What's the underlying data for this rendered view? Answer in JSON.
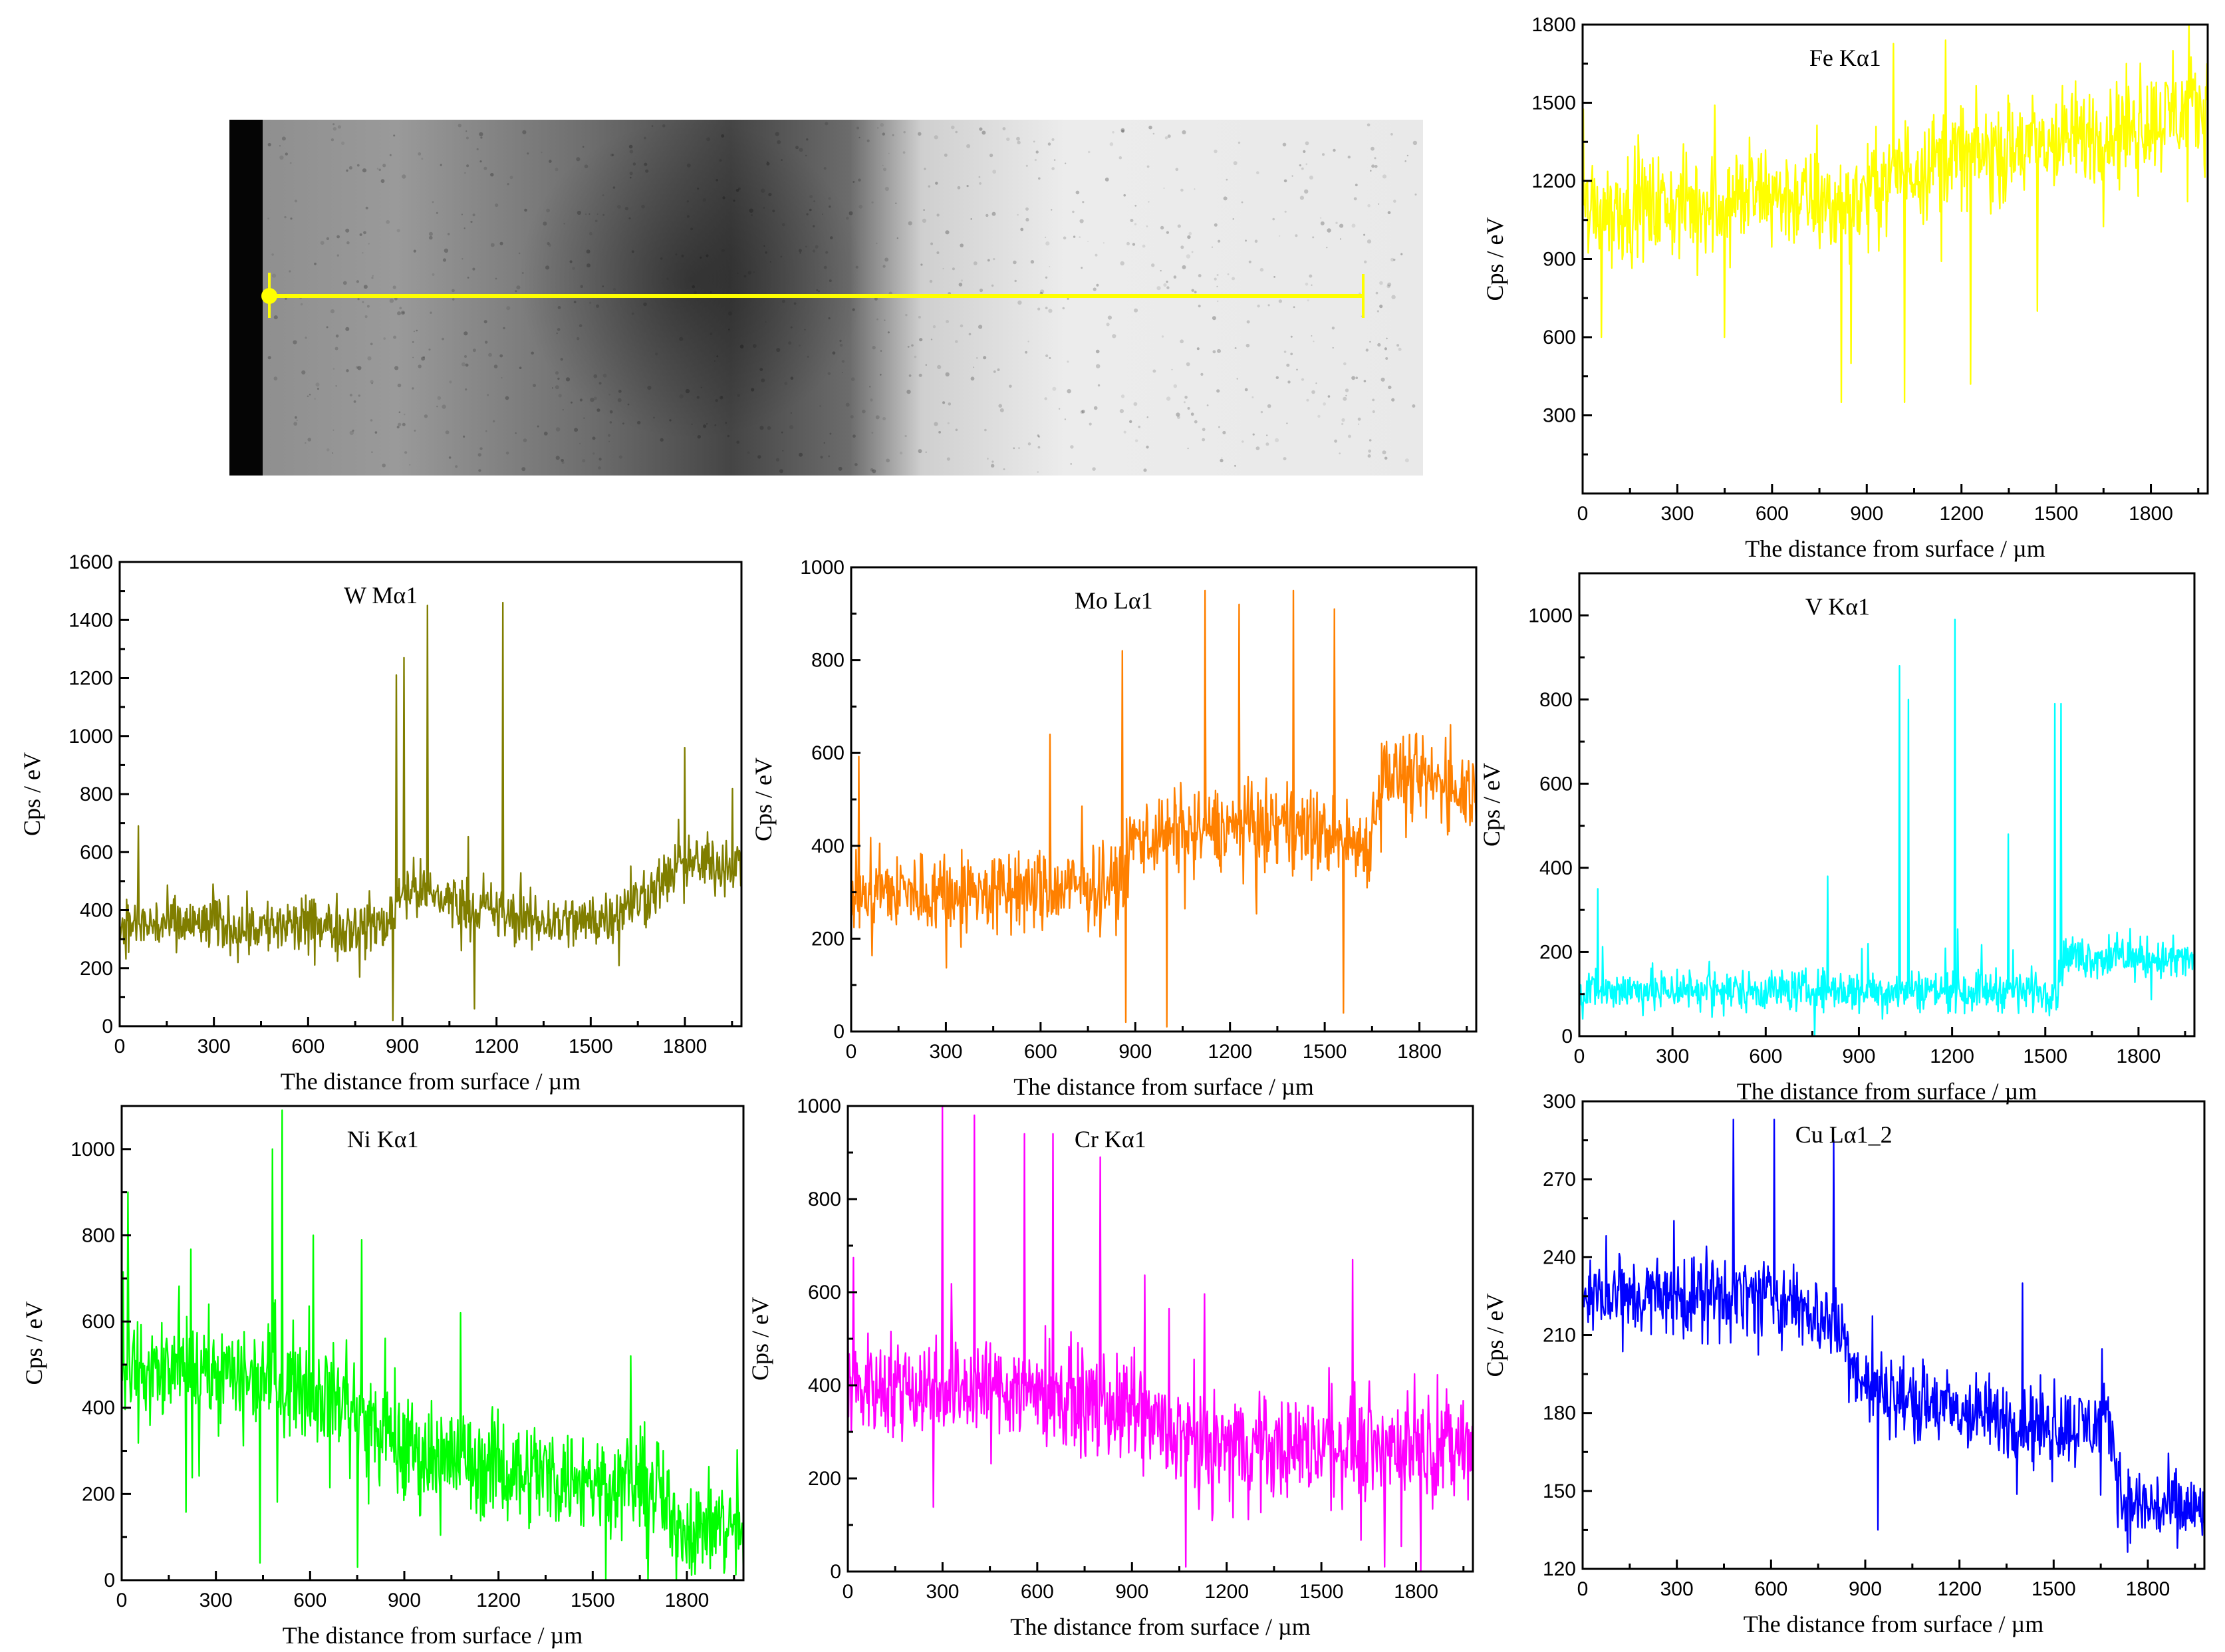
{
  "micrograph": {
    "line_color": "#ffff00"
  },
  "chart_data": [
    {
      "type": "line",
      "title": "Fe Kα1",
      "xlabel": "The distance from surface / µm",
      "ylabel": "Cps / eV",
      "color": "#ffff00",
      "xlim": [
        0,
        1980
      ],
      "ylim": [
        0,
        1800
      ],
      "xticks": [
        0,
        300,
        600,
        900,
        1200,
        1500,
        1800
      ],
      "yticks": [
        300,
        600,
        900,
        1200,
        1500,
        1800
      ],
      "profile": [
        [
          0,
          1100
        ],
        [
          300,
          1100
        ],
        [
          600,
          1150
        ],
        [
          800,
          1100
        ],
        [
          900,
          1150
        ],
        [
          1000,
          1250
        ],
        [
          1200,
          1300
        ],
        [
          1300,
          1300
        ],
        [
          1500,
          1350
        ],
        [
          1700,
          1400
        ],
        [
          1980,
          1480
        ]
      ],
      "noise": 180,
      "peaks": [
        [
          60,
          600
        ],
        [
          450,
          600
        ],
        [
          820,
          350
        ],
        [
          850,
          500
        ],
        [
          1020,
          350
        ],
        [
          1230,
          420
        ],
        [
          1440,
          700
        ],
        [
          1150,
          1740
        ],
        [
          1870,
          1700
        ]
      ]
    },
    {
      "type": "line",
      "title": "W Mα1",
      "xlabel": "The distance from surface / µm",
      "ylabel": "Cps / eV",
      "color": "#807e00",
      "xlim": [
        0,
        1980
      ],
      "ylim": [
        0,
        1600
      ],
      "xticks": [
        0,
        300,
        600,
        900,
        1200,
        1500,
        1800
      ],
      "yticks": [
        0,
        200,
        400,
        600,
        800,
        1000,
        1200,
        1400,
        1600
      ],
      "profile": [
        [
          0,
          350
        ],
        [
          300,
          350
        ],
        [
          600,
          340
        ],
        [
          850,
          350
        ],
        [
          900,
          480
        ],
        [
          1100,
          420
        ],
        [
          1300,
          360
        ],
        [
          1500,
          360
        ],
        [
          1650,
          430
        ],
        [
          1800,
          560
        ],
        [
          1980,
          560
        ]
      ],
      "noise": 90,
      "peaks": [
        [
          60,
          690
        ],
        [
          880,
          1210
        ],
        [
          905,
          1270
        ],
        [
          980,
          1450
        ],
        [
          1220,
          1460
        ],
        [
          870,
          20
        ],
        [
          1130,
          60
        ],
        [
          1800,
          960
        ]
      ]
    },
    {
      "type": "line",
      "title": "Mo Lα1",
      "xlabel": "The distance from surface / µm",
      "ylabel": "Cps / eV",
      "color": "#ff8000",
      "xlim": [
        0,
        1980
      ],
      "ylim": [
        0,
        1000
      ],
      "xticks": [
        0,
        300,
        600,
        900,
        1200,
        1500,
        1800
      ],
      "yticks": [
        0,
        200,
        400,
        600,
        800,
        1000
      ],
      "profile": [
        [
          0,
          300
        ],
        [
          300,
          300
        ],
        [
          600,
          300
        ],
        [
          850,
          320
        ],
        [
          900,
          420
        ],
        [
          1200,
          440
        ],
        [
          1400,
          440
        ],
        [
          1640,
          400
        ],
        [
          1680,
          560
        ],
        [
          1980,
          520
        ]
      ],
      "noise": 80,
      "peaks": [
        [
          630,
          640
        ],
        [
          860,
          820
        ],
        [
          1120,
          950
        ],
        [
          1230,
          920
        ],
        [
          1400,
          950
        ],
        [
          1530,
          910
        ],
        [
          870,
          20
        ],
        [
          1000,
          10
        ],
        [
          1560,
          40
        ]
      ]
    },
    {
      "type": "line",
      "title": "V Kα1",
      "xlabel": "The distance from surface / µm",
      "ylabel": "Cps / eV",
      "color": "#00ffff",
      "xlim": [
        0,
        1980
      ],
      "ylim": [
        0,
        1100
      ],
      "xticks": [
        0,
        300,
        600,
        900,
        1200,
        1500,
        1800
      ],
      "yticks": [
        0,
        200,
        400,
        600,
        800,
        1000
      ],
      "profile": [
        [
          0,
          110
        ],
        [
          300,
          110
        ],
        [
          600,
          110
        ],
        [
          900,
          110
        ],
        [
          1200,
          110
        ],
        [
          1540,
          110
        ],
        [
          1560,
          190
        ],
        [
          1980,
          180
        ]
      ],
      "noise": 45,
      "peaks": [
        [
          60,
          350
        ],
        [
          800,
          380
        ],
        [
          1030,
          880
        ],
        [
          1060,
          800
        ],
        [
          1210,
          990
        ],
        [
          1380,
          480
        ],
        [
          1530,
          790
        ],
        [
          1550,
          790
        ]
      ]
    },
    {
      "type": "line",
      "title": "Ni Kα1",
      "xlabel": "The distance from surface / µm",
      "ylabel": "Cps / eV",
      "color": "#00ff00",
      "xlim": [
        0,
        1980
      ],
      "ylim": [
        0,
        1100
      ],
      "xticks": [
        0,
        300,
        600,
        900,
        1200,
        1500,
        1800
      ],
      "yticks": [
        0,
        200,
        400,
        600,
        800,
        1000
      ],
      "profile": [
        [
          0,
          480
        ],
        [
          300,
          480
        ],
        [
          500,
          470
        ],
        [
          700,
          420
        ],
        [
          900,
          300
        ],
        [
          1200,
          260
        ],
        [
          1500,
          230
        ],
        [
          1700,
          220
        ],
        [
          1750,
          130
        ],
        [
          1980,
          120
        ]
      ],
      "noise": 110,
      "peaks": [
        [
          20,
          900
        ],
        [
          480,
          1000
        ],
        [
          510,
          1090
        ],
        [
          610,
          800
        ],
        [
          1080,
          620
        ],
        [
          1620,
          520
        ],
        [
          440,
          40
        ],
        [
          750,
          30
        ]
      ]
    },
    {
      "type": "line",
      "title": "Cr Kα1",
      "xlabel": "The distance from surface / µm",
      "ylabel": "Cps / eV",
      "color": "#ff00ff",
      "xlim": [
        0,
        1980
      ],
      "ylim": [
        0,
        1000
      ],
      "xticks": [
        0,
        300,
        600,
        900,
        1200,
        1500,
        1800
      ],
      "yticks": [
        0,
        200,
        400,
        600,
        800,
        1000
      ],
      "profile": [
        [
          0,
          400
        ],
        [
          300,
          400
        ],
        [
          600,
          390
        ],
        [
          900,
          340
        ],
        [
          1100,
          270
        ],
        [
          1400,
          270
        ],
        [
          1700,
          270
        ],
        [
          1980,
          270
        ]
      ],
      "noise": 100,
      "peaks": [
        [
          300,
          1000
        ],
        [
          400,
          980
        ],
        [
          560,
          940
        ],
        [
          650,
          940
        ],
        [
          800,
          890
        ],
        [
          1600,
          670
        ],
        [
          1070,
          10
        ],
        [
          1700,
          10
        ]
      ]
    },
    {
      "type": "line",
      "title": "Cu Lα1_2",
      "xlabel": "The distance from surface / µm",
      "ylabel": "Cps / eV",
      "color": "#0000ff",
      "xlim": [
        0,
        1980
      ],
      "ylim": [
        120,
        300
      ],
      "xticks": [
        0,
        300,
        600,
        900,
        1200,
        1500,
        1800
      ],
      "yticks": [
        120,
        150,
        180,
        210,
        240,
        270,
        300
      ],
      "profile": [
        [
          0,
          225
        ],
        [
          300,
          225
        ],
        [
          600,
          225
        ],
        [
          800,
          215
        ],
        [
          900,
          190
        ],
        [
          1200,
          180
        ],
        [
          1500,
          175
        ],
        [
          1680,
          175
        ],
        [
          1720,
          145
        ],
        [
          1980,
          142
        ]
      ],
      "noise": 14,
      "peaks": [
        [
          480,
          293
        ],
        [
          610,
          293
        ],
        [
          800,
          285
        ],
        [
          940,
          135
        ],
        [
          1400,
          230
        ]
      ]
    }
  ]
}
